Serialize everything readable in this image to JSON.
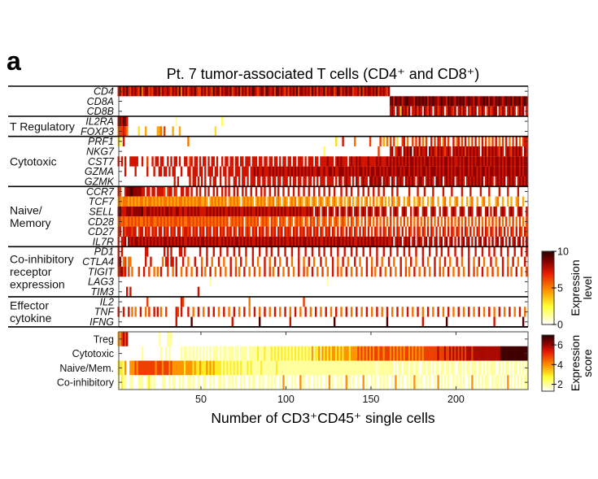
{
  "panel_letter": "a",
  "chart_data": {
    "type": "heatmap",
    "title": "Pt. 7 tumor-associated T cells (CD4⁺ and CD8⁺)",
    "xlabel": "Number of CD3⁺CD45⁺ single cells",
    "x_ticks": [
      50,
      100,
      150,
      200
    ],
    "x_range": [
      1,
      241
    ],
    "cell_encoding": "one digit per cell, spaces ignored",
    "expression_colorbar": {
      "label_lines": [
        "Expression",
        "level"
      ],
      "range": [
        0,
        10
      ],
      "ticks": [
        0,
        5,
        10
      ]
    },
    "score_colorbar": {
      "label_lines": [
        "Expression",
        "score"
      ],
      "range": [
        1.3,
        7
      ],
      "ticks": [
        2,
        4,
        6
      ]
    },
    "colors": {
      "low": "#ffffff",
      "mid1": "#ffff30",
      "mid2": "#ff9900",
      "mid3": "#e81a00",
      "high": "#2a0000"
    },
    "groups": [
      {
        "label_lines": [
          ""
        ],
        "genes": [
          {
            "name": "CD4",
            "values": "7868797687 8769578867 6887968778 7687869587 8678797668 7868769788 6878879678 7968786879 8767886987 7869878768 6878796887 8786978687 7968788679 8687978867 7869687887 8796878768 0000000000 0000000000 0000000000 0000000000 0000000000 0000000000 0000000000 0000000000 0"
          },
          {
            "name": "CD8A",
            "values": "0000000000 0000000000 0000000000 0000000000 0000000000 0000000000 0000000000 0000000000 0000000000 0000000000 0000000000 0000000000 0000000000 0000000000 0000000000 0000000000 8979889789 9888798989 8979898878 9887989879 8989789887 9878898979 8798987898 8979889789 8"
          },
          {
            "name": "CD8B",
            "values": "0000000000 0000000000 0000000000 0000000000 0000000000 0000000000 0000000000 0000000000 0000000000 0000000000 0000000000 0000000000 0000000000 0000000000 0000000000 0000000000 7870873878 6807786870 8768707867 8706887680 7868707687 8076870686 7880768707 8687068780 7"
          }
        ]
      },
      {
        "label_lines": [
          "T Regulatory"
        ],
        "genes": [
          {
            "name": "IL2RA",
            "values": "8879870000 0000000000 0000000000 0000100000 0000000000 0000000000 0200000000 0000000000 0000000000 0000000000 0000000000 0000000000 0000000000 0000000000 0000000000 0000000000 0000000000 0000000000 0000000000 0000000000 0000000000 0000000000 0000000000 0000000000 0"
          },
          {
            "name": "FOXP3",
            "values": "5667650000 0030004000 0004450600 0040004000 0000000000 0000000300 0000000000 0000000000 0000000000 0000000000 0000000000 0000000000 0000000000 0000000000 0000000000 0000000000 0000000000 0000000000 0000000000 0000000000 0000000000 0000000000 0000000000 0000000000 0"
          }
        ]
      },
      {
        "label_lines": [
          "Cytotoxic"
        ],
        "genes": [
          {
            "name": "PRF1",
            "values": "3207000000 0000000000 0000000000 0000000000 0500000000 0000000000 0000000000 0000000000 0000000000 0000000000 0000000000 0000000000 0000000030 0070000005 0000000060 0000604050 6060300670 5006060705 0600706076 0570600705 7060705060 7050706050 6070506070 5060705067 7"
          },
          {
            "name": "NKG7",
            "values": "0000000000 0000000000 0000000000 0000000000 0000000000 0000000000 0000000000 0000000000 0000000000 0000000000 0000000000 0000000000 0200000000 0000000000 0000000000 0006000000 7806787087 8790878687 7808787687 8767870878 7878687878 7870878687 8787687078 7687878708 7"
          },
          {
            "name": "CST7",
            "values": "7070700777 7700700600 7077077007 0707707007 7067077070 7707077070 0707707707 7077077707 7707707707 7077070770 7707707770 7077707707 7778777078 7877707877 8787777877 7787877787 8787878787 8788787878 7887878787 8788787877 8787887878 7887878787 8788787878 8787887878 8"
          },
          {
            "name": "GZMA",
            "values": "0000700000 7000000700 0700770770 7077000700 0770777077 0707770770 7077077707 7707777077 8787787778 7878787877 8787878787 8787877887 7877887877 8887878787 8788787878 8788787878 8787887878 8788787878 8787888787 8788787878 8787887878 8787887878 8788787878 8787887878 8"
          },
          {
            "name": "GZMK",
            "values": "0000000000 0000000000 0000000000 0007070000 0070770707 0700707700 7007070077 0707707077 7077077077 0770770777 0707707707 7077070707 7707777070 8707877070 8707877088 7878808787 0870878708 7878707887 0787870887 8078787807 8787078787 8787807878 7078787807 8787078787 8"
          }
        ]
      },
      {
        "label_lines": [
          "Naive/",
          "Memory"
        ],
        "genes": [
          {
            "name": "CCR7",
            "values": "7600788998 8888770770 7707777606 7707600770 7707007070 0707007070 0707070070 7007070070 0700707007 0070700700 7007007007 0070070070 0700700700 0700700700 0700700700 7007007000 0700700000 0700007000 7000070000 0700007000 0070000700 0007000070 0000700007 0000070000 0"
          },
          {
            "name": "TCF7",
            "values": "4545554545 4545545455 4545454554 5454545545 4545454554 4540454545 4545045454 5404545454 0454545045 4504540454 0454504540 4540454045 4045404540 4504045040 4504045040 5040450404 0540450040 4500404504 0040450040 0450040045 0040040450 0400450040 0045004004 0400450040 0"
          },
          {
            "name": "SELL",
            "values": "8977788878 8888977887 8787878788 7877887787 7878787877 7787878787 8787787878 7877878787 7878787877 8787878787 7878787877 7878707870 7870787078 0787078707 8707870787 0787078700 7078700787 0070787007 8700787007 0787007870 0787007870 0787007807 0870078700 7870078700 7"
          },
          {
            "name": "CD28",
            "values": "5656556565 6565565656 6556565656 5656656565 5665656565 6565656565 6565605656 5656056565 6560565650 6565065650 5650565650 6506560650 5650650565 0565050650 6505060560 5060506050 6050605060 5060506050 6050605060 5060506050 6050605060 5060506050 6050605060 5060506050 6"
          },
          {
            "name": "CD27",
            "values": "6707677767 7067707670 7670770767 0767077067 7670767076 7076707670 7670767076 0767067607 6707670760 7670767076 7607670767 0767076707 6076707607 0760707607 6070760706 0760707607 6070760706 0760707607 6070760706 0760707607 6070760706 0760707607 6070760706 0760707607 6"
          },
          {
            "name": "IL7R",
            "values": "7077808787 8878787878 7878787887 8787878787 7878787878 8787878787 7878787878 8787878787 7878787878 8787878787 7878787878 8787878787 7878787878 8787878787 7878787878 8787878787 7807878078 7807807870 7807807807 8078078070 8078078070 8078078070 8078078070 8078078070 8"
          }
        ]
      },
      {
        "label_lines": [
          "Co-inhibitory",
          "receptor",
          "expression"
        ],
        "genes": [
          {
            "name": "PD1",
            "values": "7070000000 0000007700 0000000707 0700007707 0000000070 0070007000 7000700070 0700070007 0007000700 7000700070 0070007000 7000700070 0700070007 0007000700 7000700070 0070007000 7000700070 0700070007 0007000700 7000700070 0070007000 7000700070 0700070007 0007000700 7"
          },
          {
            "name": "CTLA4",
            "values": "7805605500 0000007007 0000005077 0770700070 0500070005 0070050007 0050007005 0070050007 0050007005 0070050007 0050007005 0070050007 0050007005 0070050007 0050007005 0070050007 0050007005 0070050007 0050007005 0070050007 0050007005 0070050007 0050007005 0070050007 0"
          },
          {
            "name": "TIGIT",
            "values": "6786706050 0060070060 0505070006 0050700500 6005007006 0500700500 6005007006 0500700500 6005007006 0500700500 6005007006 0500700500 6005007006 0500700500 6005007006 0500700500 6005007006 0500700500 6005007006 0500700500 6005007006 0500700500 6005007006 0500700500 6"
          },
          {
            "name": "LAG3",
            "values": "0000000000 0000000000 0000000000 0000000000 0000000000 0000100000 0000000000 0000000000 0000000000 0000000000 0000000000 0000000000 0001000000 0000000000 0000000000 0000000000 0000000000 0000000000 0000000000 0000000000 0000000000 0000000000 0000000000 0000000000 0"
          },
          {
            "name": "TIM3",
            "values": "0000070700 0000000000 0000000000 0000000000 0000000700 0000000000 0000000000 0000000000 0000000000 0000000000 0000000000 0000000000 0000000000 0000000000 0000000000 0000000000 0000000000 0000000000 0000000000 0000000000 0000000000 0000000000 0000000000 0000000000 0"
          }
        ]
      },
      {
        "label_lines": [
          "Effector",
          "cytokine"
        ],
        "genes": [
          {
            "name": "IL2",
            "values": "0000000000 0000000600 0000000000 0000000760 0000000000 0000000000 0000000000 0000000500 0000000000 0000000000 0000000006 0000000000 0000000000 0000000000 0000000000 0000000000 0000000000 0000000000 0000000000 0000000000 0000000000 0000000000 0000000000 0000000000 0"
          },
          {
            "name": "TNF",
            "values": "7007007050 5007005060 0707050060 0000760700 0700500700 5007007005 0070050070 0500700500 7005007005 0070050070 0500700500 7005007005 0070050070 0500700500 7005007005 0070050070 0500700500 7005007005 0070050070 0500700500 7005007005 0070050070 0500700500 7005007005 0"
          },
          {
            "name": "IFNG",
            "values": "0000000000 0000000000 0000000000 0000700000 0009000000 0000000000 0000000700 0000000000 0009000000 0000000000 0700000000 0000000000 0000000900 0000000000 0000000000 0000000090 0000000000 0000000007 0000000000 0009000000 0000000000 0000000000 0700000000 0000000090 0"
          }
        ]
      }
    ],
    "scores": [
      {
        "name": "Treg",
        "values": "4456560000 0000000000 0000200002 2200000000 0000000000 0000000000 0000000000 0000000000 0000000000 0000000000 0000000000 0000000000 0000000000 0000000000 0000000000 0000000000 0000000000 0000000000 0000000000 0000000000 0000000000 0000000000 0000000000 0000000000 0"
      },
      {
        "name": "Cytotoxic",
        "values": "0000000000 0000200000 0000020020 2000000202 2020202020 2020202220 2022022202 2022220222 2232223222 3232323232 3232323232 3232423342 4343434434 3434443444 4545454545 4554554555 4545454545 5454545454 5555555565 5565565656 5656566656 6666666666 6666677777 7777777777 7"
      },
      {
        "name": "Naive/Mem.",
        "values": "3332400444 5455555555 5545554555 4544444443 4444343343 3343434333 3232323232 3232223232 2222322222 2223222222 2222222222 2222222222 2222222222 2222222222 2222222222 2202222222 2202022022 2022022002 2022020220 2202202200 2202022022 2022020202 2200202022 0202202020 2"
      },
      {
        "name": "Co-inhibitory",
        "values": "2032200220 0022200232 0200002200 2022002020 0220200200 2200202002 2020020202 0020200202 2002020020 2020020402 0020200402 0020020202 0020402002 0200402020 0200402002 0200202020 0204020200 2020402020 0202002040 2020200202 0202002040 2020202200 2022020204 0202020202 2"
      }
    ]
  }
}
